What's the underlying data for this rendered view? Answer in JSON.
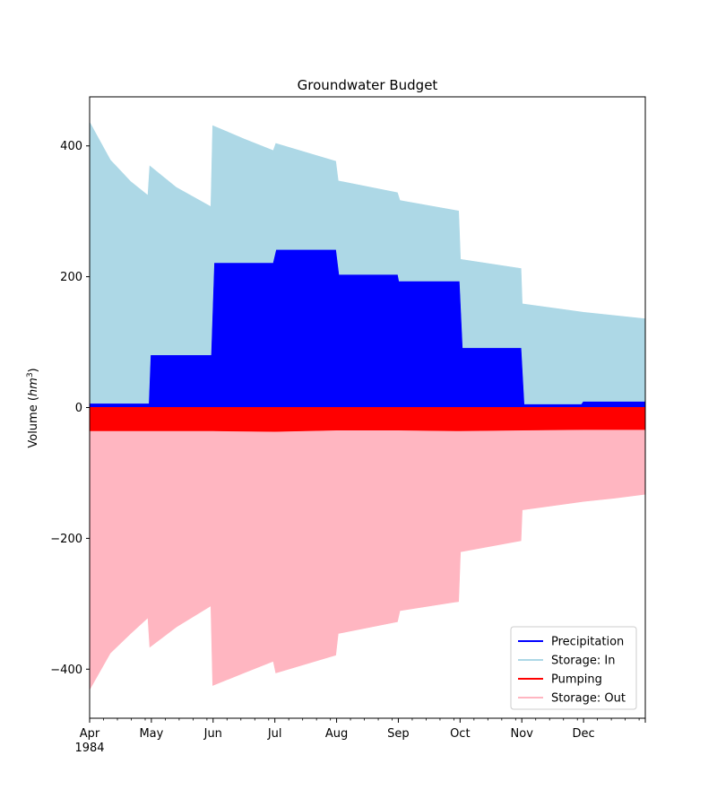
{
  "chart_data": {
    "type": "area",
    "title": "Groundwater Budget",
    "ylabel": "Volume (hm³)",
    "ylabel_main": "Volume (",
    "ylabel_unit": "hm",
    "ylabel_exp": "3",
    "ylabel_close": ")",
    "xlabel": "",
    "ylim": [
      -475,
      475
    ],
    "yticks": [
      -400,
      -200,
      0,
      200,
      400
    ],
    "ytick_labels": [
      "−400",
      "−200",
      "0",
      "200",
      "400"
    ],
    "x_range_months": [
      0,
      9
    ],
    "xtick_labels": [
      "Apr",
      "May",
      "Jun",
      "Jul",
      "Aug",
      "Sep",
      "Oct",
      "Nov",
      "Dec"
    ],
    "xtick_year": "1984",
    "legend_position": "lower-right",
    "series": [
      {
        "name": "Precipitation",
        "color": "#0000ff",
        "values": [
          {
            "x": 0.0,
            "y": 5
          },
          {
            "x": 0.97,
            "y": 5
          },
          {
            "x": 1.0,
            "y": 79
          },
          {
            "x": 1.98,
            "y": 79
          },
          {
            "x": 2.03,
            "y": 220
          },
          {
            "x": 2.98,
            "y": 220
          },
          {
            "x": 3.03,
            "y": 240
          },
          {
            "x": 3.98,
            "y": 240
          },
          {
            "x": 4.03,
            "y": 202
          },
          {
            "x": 4.98,
            "y": 202
          },
          {
            "x": 5.0,
            "y": 192
          },
          {
            "x": 5.98,
            "y": 192
          },
          {
            "x": 6.03,
            "y": 90
          },
          {
            "x": 6.98,
            "y": 90
          },
          {
            "x": 7.03,
            "y": 4
          },
          {
            "x": 7.97,
            "y": 4
          },
          {
            "x": 8.0,
            "y": 8
          },
          {
            "x": 9.0,
            "y": 8
          }
        ]
      },
      {
        "name": "Storage: In",
        "color": "#add8e6",
        "values": [
          {
            "x": 0.0,
            "y": 435
          },
          {
            "x": 0.33,
            "y": 378
          },
          {
            "x": 0.66,
            "y": 345
          },
          {
            "x": 0.95,
            "y": 323
          },
          {
            "x": 0.98,
            "y": 368
          },
          {
            "x": 1.4,
            "y": 336
          },
          {
            "x": 1.97,
            "y": 306
          },
          {
            "x": 2.0,
            "y": 430
          },
          {
            "x": 2.5,
            "y": 410
          },
          {
            "x": 2.98,
            "y": 392
          },
          {
            "x": 3.02,
            "y": 403
          },
          {
            "x": 3.98,
            "y": 376
          },
          {
            "x": 4.02,
            "y": 346
          },
          {
            "x": 4.98,
            "y": 328
          },
          {
            "x": 5.02,
            "y": 316
          },
          {
            "x": 5.97,
            "y": 300
          },
          {
            "x": 6.0,
            "y": 226
          },
          {
            "x": 6.98,
            "y": 212
          },
          {
            "x": 7.0,
            "y": 158
          },
          {
            "x": 8.0,
            "y": 145
          },
          {
            "x": 8.5,
            "y": 140
          },
          {
            "x": 9.0,
            "y": 135
          }
        ]
      },
      {
        "name": "Pumping",
        "color": "#ff0000",
        "values": [
          {
            "x": 0.0,
            "y": -35
          },
          {
            "x": 1.0,
            "y": -35
          },
          {
            "x": 2.0,
            "y": -35
          },
          {
            "x": 3.0,
            "y": -36
          },
          {
            "x": 4.0,
            "y": -34
          },
          {
            "x": 5.0,
            "y": -34
          },
          {
            "x": 6.0,
            "y": -35
          },
          {
            "x": 7.0,
            "y": -34
          },
          {
            "x": 8.0,
            "y": -33
          },
          {
            "x": 9.0,
            "y": -33
          }
        ]
      },
      {
        "name": "Storage: Out",
        "color": "#ffb6c1",
        "values": [
          {
            "x": 0.0,
            "y": -430
          },
          {
            "x": 0.33,
            "y": -375
          },
          {
            "x": 0.66,
            "y": -345
          },
          {
            "x": 0.95,
            "y": -320
          },
          {
            "x": 0.98,
            "y": -365
          },
          {
            "x": 1.4,
            "y": -335
          },
          {
            "x": 1.97,
            "y": -302
          },
          {
            "x": 2.0,
            "y": -424
          },
          {
            "x": 2.5,
            "y": -405
          },
          {
            "x": 2.98,
            "y": -387
          },
          {
            "x": 3.02,
            "y": -405
          },
          {
            "x": 3.98,
            "y": -378
          },
          {
            "x": 4.02,
            "y": -345
          },
          {
            "x": 4.98,
            "y": -327
          },
          {
            "x": 5.02,
            "y": -310
          },
          {
            "x": 5.97,
            "y": -296
          },
          {
            "x": 6.0,
            "y": -220
          },
          {
            "x": 6.98,
            "y": -203
          },
          {
            "x": 7.0,
            "y": -156
          },
          {
            "x": 8.0,
            "y": -143
          },
          {
            "x": 8.5,
            "y": -138
          },
          {
            "x": 9.0,
            "y": -132
          }
        ]
      }
    ]
  }
}
